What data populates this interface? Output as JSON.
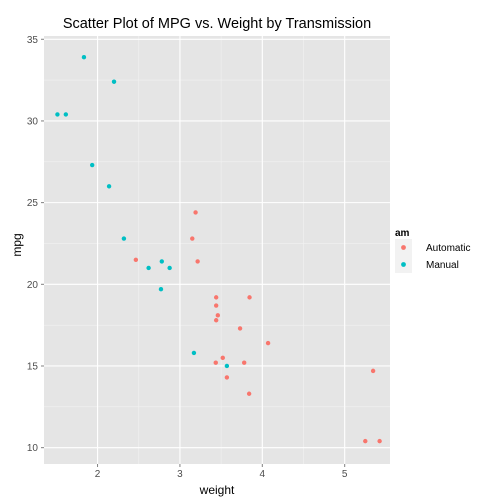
{
  "chart_data": {
    "type": "scatter",
    "title": "Scatter Plot of MPG vs. Weight by Transmission",
    "xlabel": "weight",
    "ylabel": "mpg",
    "xlim": [
      1.35,
      5.55
    ],
    "ylim": [
      9.0,
      35.2
    ],
    "xticks": [
      2,
      3,
      4,
      5
    ],
    "yticks": [
      10,
      15,
      20,
      25,
      30,
      35
    ],
    "grid": true,
    "legend": {
      "title": "am",
      "position": "right"
    },
    "series": [
      {
        "name": "Automatic",
        "color": "#F8766D",
        "points": [
          [
            3.215,
            21.4
          ],
          [
            3.44,
            18.7
          ],
          [
            3.46,
            18.1
          ],
          [
            3.57,
            14.3
          ],
          [
            3.19,
            24.4
          ],
          [
            3.15,
            22.8
          ],
          [
            3.44,
            19.2
          ],
          [
            3.44,
            17.8
          ],
          [
            4.07,
            16.4
          ],
          [
            3.73,
            17.3
          ],
          [
            3.78,
            15.2
          ],
          [
            5.25,
            10.4
          ],
          [
            5.424,
            10.4
          ],
          [
            5.345,
            14.7
          ],
          [
            2.465,
            21.5
          ],
          [
            3.52,
            15.5
          ],
          [
            3.435,
            15.2
          ],
          [
            3.84,
            13.3
          ],
          [
            3.845,
            19.2
          ]
        ]
      },
      {
        "name": "Manual",
        "color": "#00BFC4",
        "points": [
          [
            2.62,
            21.0
          ],
          [
            2.875,
            21.0
          ],
          [
            2.32,
            22.8
          ],
          [
            2.2,
            32.4
          ],
          [
            1.615,
            30.4
          ],
          [
            1.835,
            33.9
          ],
          [
            1.935,
            27.3
          ],
          [
            2.14,
            26.0
          ],
          [
            1.513,
            30.4
          ],
          [
            3.17,
            15.8
          ],
          [
            2.77,
            19.7
          ],
          [
            3.57,
            15.0
          ],
          [
            2.78,
            21.4
          ]
        ]
      }
    ]
  }
}
